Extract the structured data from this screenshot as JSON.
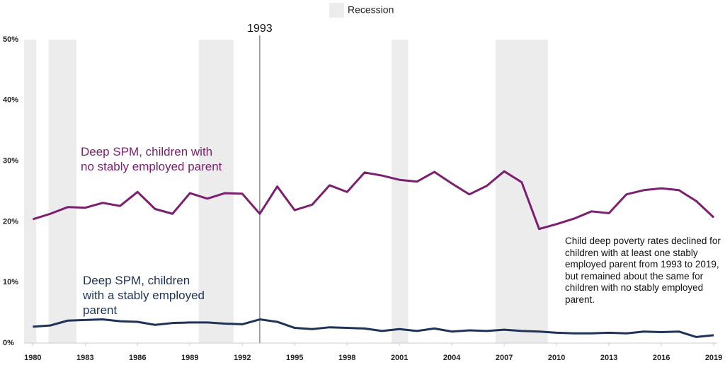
{
  "chart_data": {
    "type": "line",
    "x": [
      1980,
      1981,
      1982,
      1983,
      1984,
      1985,
      1986,
      1987,
      1988,
      1989,
      1990,
      1991,
      1992,
      1993,
      1994,
      1995,
      1996,
      1997,
      1998,
      1999,
      2000,
      2001,
      2002,
      2003,
      2004,
      2005,
      2006,
      2007,
      2008,
      2009,
      2010,
      2011,
      2012,
      2013,
      2014,
      2015,
      2016,
      2017,
      2018,
      2019
    ],
    "series": [
      {
        "name": "Deep SPM, children with no stably employed parent",
        "color": "#7b1f6e",
        "values": [
          20.4,
          21.3,
          22.4,
          22.3,
          23.1,
          22.6,
          24.9,
          22.1,
          21.3,
          24.7,
          23.8,
          24.7,
          24.6,
          21.3,
          25.8,
          21.9,
          22.8,
          26.0,
          24.9,
          28.1,
          27.6,
          26.9,
          26.6,
          28.2,
          26.3,
          24.5,
          25.9,
          28.3,
          26.5,
          18.8,
          19.6,
          20.5,
          21.7,
          21.4,
          24.5,
          25.2,
          25.5,
          25.2,
          23.4,
          20.7
        ]
      },
      {
        "name": "Deep SPM, children with a stably employed parent",
        "color": "#1f3358",
        "values": [
          2.7,
          2.9,
          3.7,
          3.8,
          3.9,
          3.6,
          3.5,
          3.0,
          3.3,
          3.4,
          3.4,
          3.2,
          3.1,
          3.9,
          3.5,
          2.5,
          2.3,
          2.6,
          2.5,
          2.4,
          2.0,
          2.3,
          2.0,
          2.4,
          1.9,
          2.1,
          2.0,
          2.2,
          2.0,
          1.9,
          1.7,
          1.6,
          1.6,
          1.7,
          1.6,
          1.9,
          1.8,
          1.9,
          1.0,
          1.3
        ]
      }
    ],
    "xlim": [
      1979.5,
      2019.2
    ],
    "xticks": [
      1980,
      1983,
      1986,
      1989,
      1992,
      1995,
      1998,
      2001,
      2004,
      2007,
      2010,
      2013,
      2016,
      2019
    ],
    "ylim": [
      0,
      50
    ],
    "yticks": [
      {
        "value": 0,
        "label": "0%"
      },
      {
        "value": 10,
        "label": "10%"
      },
      {
        "value": 20,
        "label": "20%"
      },
      {
        "value": 30,
        "label": "30%"
      },
      {
        "value": 40,
        "label": "40%"
      },
      {
        "value": 50,
        "label": "50%"
      }
    ],
    "recession_label": "Recession",
    "recession_color": "#ececec",
    "recessions": [
      [
        1979.5,
        1980.2
      ],
      [
        1980.9,
        1982.5
      ],
      [
        1989.5,
        1991.5
      ],
      [
        2000.55,
        2001.5
      ],
      [
        2006.5,
        2009.5
      ]
    ],
    "highlight_x": 1993,
    "annotation": "Child deep poverty rates declined for children with at least one stably employed parent from 1993 to 2019, but remained about the same for children with no stably employed parent."
  }
}
